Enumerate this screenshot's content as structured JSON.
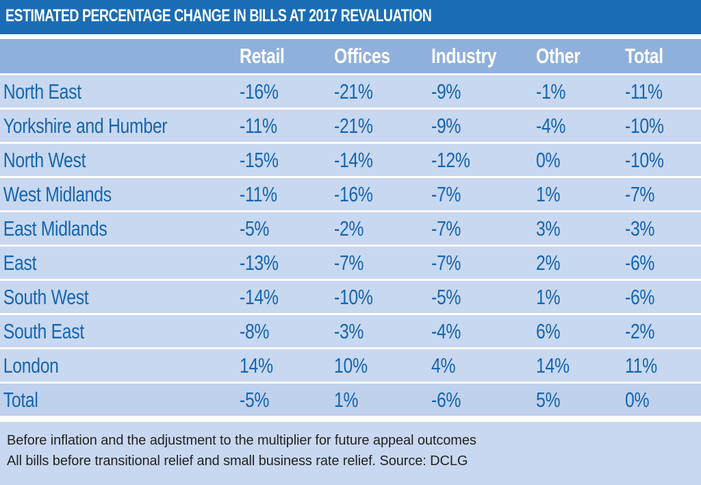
{
  "chart_data": {
    "type": "table",
    "title": "ESTIMATED PERCENTAGE CHANGE IN BILLS AT 2017 REVALUATION",
    "columns": [
      "",
      "Retail",
      "Offices",
      "Industry",
      "Other",
      "Total"
    ],
    "rows": [
      {
        "region": "North East",
        "values": [
          "-16%",
          "-21%",
          "-9%",
          "-1%",
          "-11%"
        ]
      },
      {
        "region": "Yorkshire and Humber",
        "values": [
          "-11%",
          "-21%",
          "-9%",
          "-4%",
          "-10%"
        ]
      },
      {
        "region": "North West",
        "values": [
          "-15%",
          "-14%",
          "-12%",
          "0%",
          "-10%"
        ]
      },
      {
        "region": "West Midlands",
        "values": [
          "-11%",
          "-16%",
          "-7%",
          "1%",
          "-7%"
        ]
      },
      {
        "region": "East Midlands",
        "values": [
          "-5%",
          "-2%",
          "-7%",
          "3%",
          "-3%"
        ]
      },
      {
        "region": "East",
        "values": [
          "-13%",
          "-7%",
          "-7%",
          "2%",
          "-6%"
        ]
      },
      {
        "region": "South West",
        "values": [
          "-14%",
          "-10%",
          "-5%",
          "1%",
          "-6%"
        ]
      },
      {
        "region": "South East",
        "values": [
          "-8%",
          "-3%",
          "-4%",
          "6%",
          "-2%"
        ]
      },
      {
        "region": "London",
        "values": [
          "14%",
          "10%",
          "4%",
          "14%",
          "11%"
        ]
      },
      {
        "region": "Total",
        "values": [
          "-5%",
          "1%",
          "-6%",
          "5%",
          "0%"
        ]
      }
    ]
  },
  "notes": [
    "Before inflation and the adjustment to the multiplier for future appeal outcomes",
    "All bills before transitional relief and small business rate relief. Source: DCLG"
  ],
  "colors": {
    "title_bar": "#1a6db5",
    "header_row": "#8fb0dc",
    "row_bg": "#c8d8f0",
    "row_text": "#1565b2",
    "note_text": "#222222"
  }
}
